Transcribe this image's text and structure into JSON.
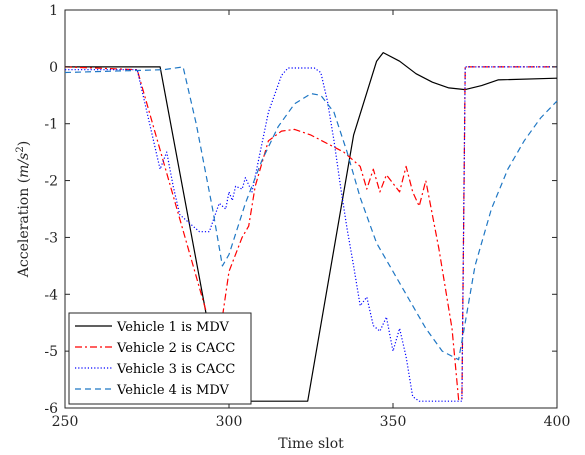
{
  "chart_data": {
    "type": "line",
    "title": "",
    "xlabel": "Time slot",
    "ylabel": "Acceleration (m/s^2)",
    "ylabel_plain": "Acceleration (",
    "ylabel_italic": "m/s",
    "ylabel_sup": "2",
    "ylabel_close": ")",
    "xlim": [
      250,
      400
    ],
    "ylim": [
      -6,
      1
    ],
    "xticks": [
      "250",
      "300",
      "350",
      "400"
    ],
    "yticks": [
      "1",
      "0",
      "-1",
      "-2",
      "-3",
      "-4",
      "-5",
      "-6"
    ],
    "grid": false,
    "legend_position": "bottom-left",
    "series": [
      {
        "name": "Vehicle 1 is MDV",
        "color": "#000000",
        "dash": "solid",
        "x": [
          250,
          270,
          279,
          298,
          324,
          338,
          345,
          347,
          352,
          357,
          362,
          367,
          372,
          377,
          382,
          400
        ],
        "y": [
          0,
          0,
          0,
          -5.88,
          -5.88,
          -1.2,
          0.1,
          0.25,
          0.1,
          -0.12,
          -0.27,
          -0.37,
          -0.4,
          -0.33,
          -0.23,
          -0.2
        ]
      },
      {
        "name": "Vehicle 2 is CACC",
        "color": "#ff0000",
        "dash": "dashdot",
        "x": [
          250,
          272,
          296,
          298,
          300,
          304,
          306,
          308,
          312,
          316,
          320,
          325,
          330,
          335,
          340,
          342,
          344,
          346,
          348,
          350,
          352,
          354,
          356,
          358,
          360,
          364,
          368,
          370,
          371,
          372,
          400
        ],
        "y": [
          0,
          -0.05,
          -4.9,
          -4.4,
          -3.6,
          -3.0,
          -2.8,
          -2.1,
          -1.3,
          -1.13,
          -1.1,
          -1.2,
          -1.35,
          -1.5,
          -1.75,
          -2.15,
          -1.8,
          -2.2,
          -1.9,
          -2.05,
          -2.2,
          -1.75,
          -2.2,
          -2.45,
          -2.0,
          -3.2,
          -4.6,
          -5.85,
          -5.85,
          0,
          0
        ]
      },
      {
        "name": "Vehicle 3 is CACC",
        "color": "#0000ff",
        "dash": "dotted",
        "x": [
          250,
          272,
          278,
          279,
          281,
          283,
          285,
          289,
          291,
          294,
          297,
          299,
          300,
          301,
          302,
          304,
          305,
          307,
          312,
          316,
          318,
          320,
          326,
          328,
          330,
          332,
          334,
          336,
          338,
          340,
          342,
          344,
          346,
          348,
          350,
          352,
          354,
          356,
          358,
          360,
          362,
          364,
          366,
          368,
          370,
          371,
          372,
          400
        ],
        "y": [
          -0.05,
          -0.05,
          -1.55,
          -1.8,
          -1.5,
          -2.1,
          -2.6,
          -2.8,
          -2.9,
          -2.9,
          -2.4,
          -2.5,
          -2.2,
          -2.35,
          -2.1,
          -2.15,
          -1.95,
          -2.2,
          -0.8,
          -0.15,
          -0.02,
          -0.02,
          -0.02,
          -0.1,
          -0.6,
          -1.3,
          -2.1,
          -2.85,
          -3.5,
          -4.2,
          -4.05,
          -4.55,
          -4.65,
          -4.4,
          -5.0,
          -4.6,
          -5.1,
          -5.8,
          -5.88,
          -5.88,
          -5.88,
          -5.88,
          -5.88,
          -5.88,
          -5.88,
          -5.88,
          0,
          0
        ]
      },
      {
        "name": "Vehicle 4 is MDV",
        "color": "#1f77c4",
        "dash": "dashed",
        "x": [
          250,
          280,
          286,
          290,
          295,
          298,
          300,
          305,
          310,
          315,
          320,
          325,
          328,
          332,
          336,
          340,
          345,
          350,
          355,
          360,
          365,
          370,
          372,
          375,
          380,
          385,
          390,
          395,
          400
        ],
        "y": [
          -0.1,
          -0.05,
          0,
          -1.0,
          -2.5,
          -3.5,
          -3.3,
          -2.4,
          -1.65,
          -1.05,
          -0.65,
          -0.47,
          -0.5,
          -0.8,
          -1.5,
          -2.3,
          -3.1,
          -3.6,
          -4.1,
          -4.6,
          -5.0,
          -5.15,
          -4.5,
          -3.5,
          -2.5,
          -1.8,
          -1.3,
          -0.9,
          -0.6
        ]
      }
    ]
  }
}
